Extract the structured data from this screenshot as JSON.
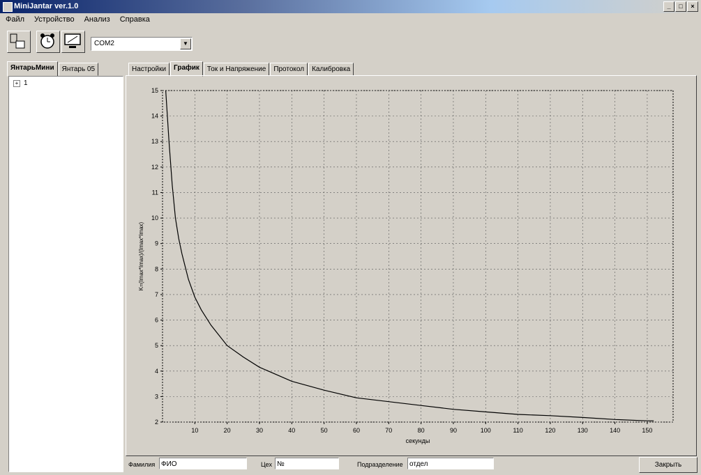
{
  "window": {
    "title": "MiniJantar ver.1.0"
  },
  "menu": [
    "Файл",
    "Устройство",
    "Анализ",
    "Справка"
  ],
  "toolbar": {
    "port": "COM2"
  },
  "left_tabs": [
    "ЯнтарьМини",
    "Янтарь 05"
  ],
  "tree": {
    "root_label": "1"
  },
  "right_tabs": [
    "Настройки",
    "График",
    "Ток и Напряжение",
    "Протокол",
    "Калибровка"
  ],
  "chart_data": {
    "type": "line",
    "xlabel": "секунды",
    "ylabel": "K=(Imax*Imax)/(Imax*Imax)",
    "xlim": [
      0,
      158
    ],
    "ylim": [
      2,
      15
    ],
    "x_ticks": [
      "10",
      "20",
      "30",
      "40",
      "50",
      "60",
      "70",
      "80",
      "90",
      "100",
      "110",
      "120",
      "130",
      "140",
      "150"
    ],
    "y_ticks": [
      "2",
      "3",
      "4",
      "5",
      "6",
      "7",
      "8",
      "9",
      "10",
      "11",
      "12",
      "13",
      "14",
      "15"
    ],
    "grid": true,
    "series": [
      {
        "x": [
          1,
          2,
          3,
          4,
          5,
          6,
          8,
          10,
          12,
          15,
          20,
          25,
          30,
          40,
          50,
          60,
          70,
          80,
          90,
          100,
          110,
          120,
          130,
          140,
          148,
          150,
          152
        ],
        "values": [
          15,
          13,
          11.3,
          10,
          9.2,
          8.6,
          7.6,
          6.9,
          6.4,
          5.8,
          5.0,
          4.55,
          4.15,
          3.6,
          3.25,
          2.95,
          2.8,
          2.65,
          2.5,
          2.4,
          2.3,
          2.25,
          2.18,
          2.1,
          2.06,
          2.05,
          2.05
        ]
      }
    ]
  },
  "status": {
    "surname_label": "Фамилия",
    "surname_value": "ФИО",
    "shop_label": "Цех",
    "shop_value": "№",
    "dept_label": "Подразделение",
    "dept_value": "отдел",
    "close_label": "Закрыть"
  }
}
